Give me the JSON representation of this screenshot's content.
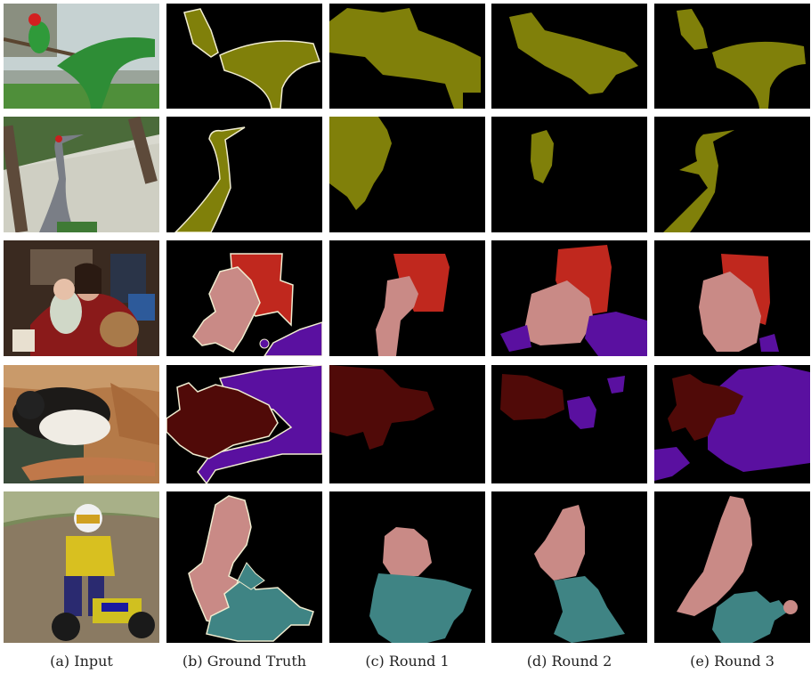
{
  "columns": [
    {
      "caption": "(a) Input"
    },
    {
      "caption": "(b) Ground Truth"
    },
    {
      "caption": "(c) Round 1"
    },
    {
      "caption": "(d) Round 2"
    },
    {
      "caption": "(e) Round 3"
    }
  ],
  "rows": [
    {
      "subject": "parrots"
    },
    {
      "subject": "crane"
    },
    {
      "subject": "mother-and-baby"
    },
    {
      "subject": "cat-and-dog"
    },
    {
      "subject": "child-on-motorbike"
    }
  ],
  "colors": {
    "bird": "#80800a",
    "person": "#c98a86",
    "sofa": "#c0281e",
    "dog": "#5a10a0",
    "cat": "#500a08",
    "motorbike": "#3f8484",
    "background": "#000000",
    "outline": "#f0ecd0"
  }
}
